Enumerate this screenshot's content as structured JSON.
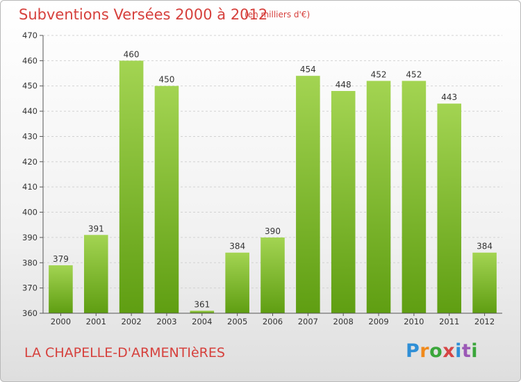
{
  "title": "Subventions Versées 2000 à 2012",
  "unit_note": "(en milliers d'€)",
  "commune": "LA CHAPELLE-D'ARMENTIèRES",
  "logo": {
    "text": "Proxiti",
    "colors": [
      "#2f8fd6",
      "#f08a1c",
      "#3aa63a",
      "#d64545",
      "#2f8fd6",
      "#9b59b6",
      "#3aa63a"
    ]
  },
  "colors": {
    "bar_light": "#a3d452",
    "bar_dark": "#5f9e12",
    "grid": "#d2d2d2",
    "axis": "#555555"
  },
  "chart_data": {
    "type": "bar",
    "title": "Subventions Versées 2000 à 2012",
    "subtitle": "(en milliers d'€)",
    "xlabel": "",
    "ylabel": "",
    "categories": [
      "2000",
      "2001",
      "2002",
      "2003",
      "2004",
      "2005",
      "2006",
      "2007",
      "2008",
      "2009",
      "2010",
      "2011",
      "2012"
    ],
    "values": [
      379,
      391,
      460,
      450,
      361,
      384,
      390,
      454,
      448,
      452,
      452,
      443,
      384
    ],
    "ylim": [
      360,
      470
    ],
    "yticks": [
      360,
      370,
      380,
      390,
      400,
      410,
      420,
      430,
      440,
      450,
      460,
      470
    ],
    "grid": true,
    "legend": "none"
  }
}
